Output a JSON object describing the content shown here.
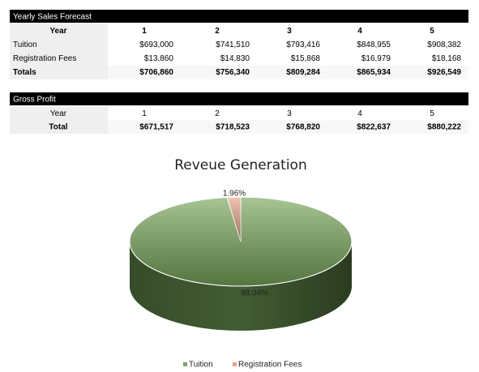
{
  "sales_table": {
    "title": "Yearly Sales Forecast",
    "header": [
      "Year",
      "1",
      "2",
      "3",
      "4",
      "5"
    ],
    "rows": [
      [
        "Tuition",
        "$693,000",
        "$741,510",
        "$793,416",
        "$848,955",
        "$908,382"
      ],
      [
        "Registration Fees",
        "$13,860",
        "$14,830",
        "$15,868",
        "$16,979",
        "$18,168"
      ],
      [
        "Totals",
        "$706,860",
        "$756,340",
        "$809,284",
        "$865,934",
        "$926,549"
      ]
    ]
  },
  "gross_table": {
    "title": "Gross Profit",
    "header": [
      "Year",
      "1",
      "2",
      "3",
      "4",
      "5"
    ],
    "rows": [
      [
        "Total",
        "$671,517",
        "$718,523",
        "$768,820",
        "$822,637",
        "$880,222"
      ]
    ]
  },
  "chart_data": {
    "type": "pie",
    "title": "Reveue Generation",
    "categories": [
      "Tuition",
      "Registration Fees"
    ],
    "values": [
      98.04,
      1.96
    ],
    "value_labels": [
      "98.04%",
      "1.96%"
    ],
    "colors": [
      "#7aa85c",
      "#e8a58a"
    ],
    "legend": "bottom"
  }
}
